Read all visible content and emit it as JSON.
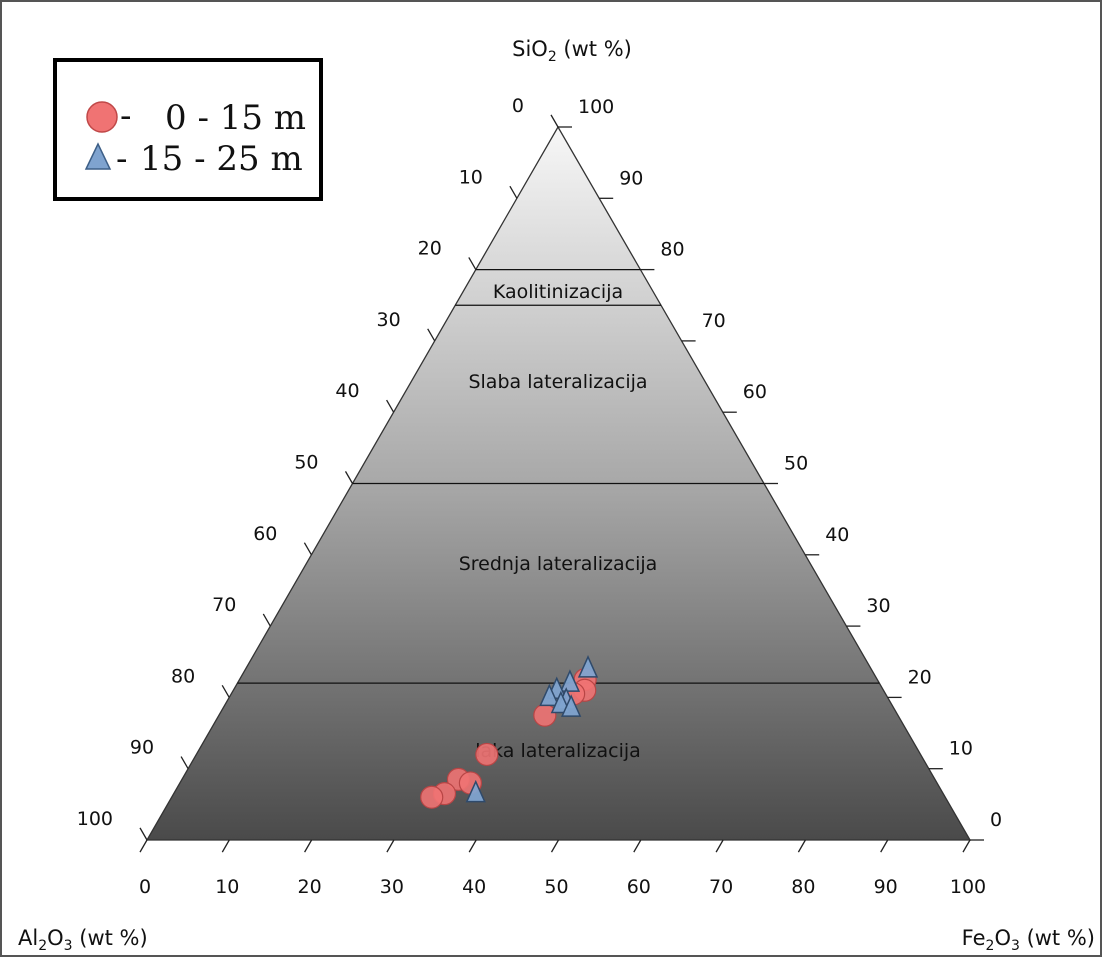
{
  "chart_data": {
    "type": "scatter",
    "subtype": "ternary",
    "axes": {
      "top": {
        "title_main": "SiO",
        "title_sub": "2",
        "title_rest": " (wt %)"
      },
      "left": {
        "title_main": "Al",
        "title_sub": "2",
        "title_mid": "O",
        "title_sub2": "3",
        "title_rest": " (wt %)"
      },
      "right": {
        "title_main": "Fe",
        "title_sub": "2",
        "title_mid": "O",
        "title_sub2": "3",
        "title_rest": " (wt %)"
      }
    },
    "ticks": [
      "0",
      "10",
      "20",
      "30",
      "40",
      "50",
      "60",
      "70",
      "80",
      "90",
      "100"
    ],
    "zones": [
      {
        "label": "Kaolitinizacija",
        "sio2_min": 75,
        "sio2_max": 80
      },
      {
        "label": "Slaba lateralizacija",
        "sio2_min": 50,
        "sio2_max": 75
      },
      {
        "label": "Srednja lateralizacija",
        "sio2_min": 22,
        "sio2_max": 50
      },
      {
        "label": "laka lateralizacija",
        "sio2_min": 0,
        "sio2_max": 22
      }
    ],
    "legend": {
      "placement": "top-left",
      "items": [
        {
          "marker": "circle",
          "dash": "-",
          "label": "0 - 15 m",
          "color": "#f07373"
        },
        {
          "marker": "triangle",
          "dash": "-",
          "label": "15 - 25 m",
          "color": "#7fa3cf"
        }
      ]
    },
    "series": [
      {
        "name": "0 - 15 m",
        "marker": "circle",
        "color": "#f07373",
        "points": [
          {
            "sio2": 22.5,
            "fe2o3": 42.0
          },
          {
            "sio2": 21.0,
            "fe2o3": 42.7
          },
          {
            "sio2": 20.5,
            "fe2o3": 41.6
          },
          {
            "sio2": 17.5,
            "fe2o3": 39.6
          },
          {
            "sio2": 12.0,
            "fe2o3": 35.3
          },
          {
            "sio2": 8.5,
            "fe2o3": 33.6
          },
          {
            "sio2": 8.0,
            "fe2o3": 35.3
          },
          {
            "sio2": 6.5,
            "fe2o3": 32.9
          },
          {
            "sio2": 6.0,
            "fe2o3": 31.6
          }
        ]
      },
      {
        "name": "15 - 25 m",
        "marker": "triangle",
        "color": "#7fa3cf",
        "points": [
          {
            "sio2": 24.0,
            "fe2o3": 41.6
          },
          {
            "sio2": 22.0,
            "fe2o3": 40.4
          },
          {
            "sio2": 21.0,
            "fe2o3": 39.3
          },
          {
            "sio2": 20.0,
            "fe2o3": 38.9
          },
          {
            "sio2": 19.5,
            "fe2o3": 41.2
          },
          {
            "sio2": 19.0,
            "fe2o3": 40.8
          },
          {
            "sio2": 18.5,
            "fe2o3": 42.3
          },
          {
            "sio2": 6.5,
            "fe2o3": 36.7
          }
        ]
      }
    ]
  }
}
